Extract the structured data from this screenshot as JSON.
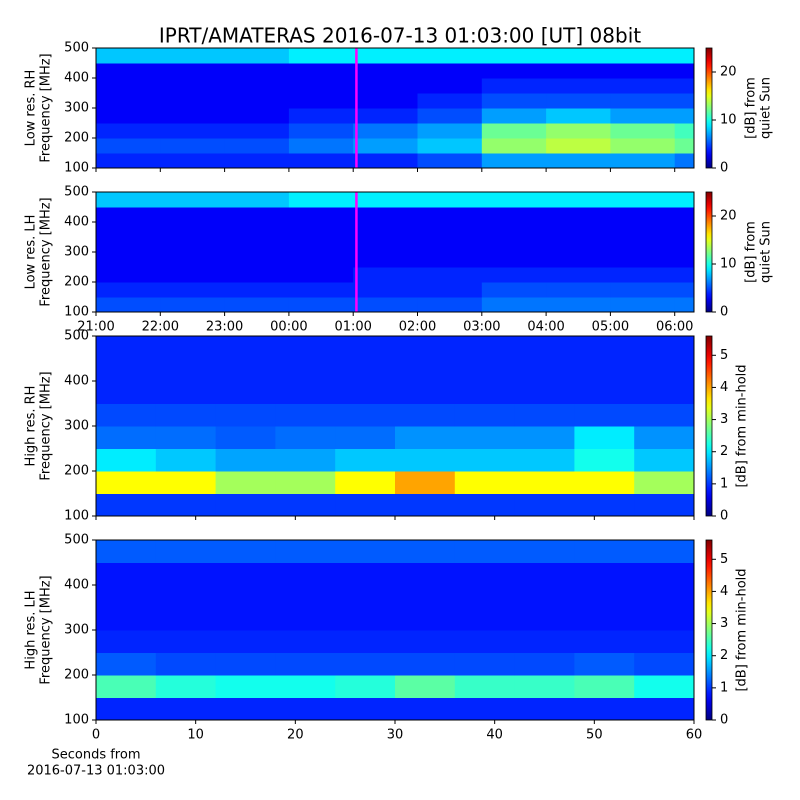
{
  "title": "IPRT/AMATERAS 2016-07-13 01:03:00 [UT]   08bit",
  "chart_data": [
    {
      "type": "heatmap",
      "colormap": "jet",
      "ylabel": [
        "Low res. RH",
        "Frequency [MHz]"
      ],
      "ylim": [
        100,
        500
      ],
      "yticks": [
        100,
        200,
        300,
        400,
        500
      ],
      "xlim": [
        0,
        9.3
      ],
      "xticks": [
        0,
        1,
        2,
        3,
        4,
        5,
        6,
        7,
        8,
        9
      ],
      "show_xticklabels": false,
      "marker_x": 4.05,
      "marker_color": "#ff00ff",
      "clim": [
        0,
        25
      ],
      "cticks": [
        0,
        10,
        20
      ],
      "clabel": [
        "[dB] from",
        "quiet Sun"
      ],
      "xbins": [
        0,
        1,
        2,
        3,
        4,
        5,
        6,
        7,
        8,
        9,
        9.3
      ],
      "ybins": [
        100,
        150,
        200,
        250,
        300,
        350,
        400,
        450,
        500
      ],
      "z": [
        [
          4,
          4,
          4,
          4,
          4,
          5,
          7,
          7,
          7,
          6
        ],
        [
          5,
          5,
          5,
          6,
          7,
          8,
          13,
          14,
          13,
          12
        ],
        [
          4,
          4,
          4,
          5,
          6,
          7,
          12,
          13,
          12,
          11
        ],
        [
          3,
          3,
          3,
          4,
          4,
          5,
          7,
          8,
          7,
          7
        ],
        [
          3,
          3,
          3,
          3,
          3,
          4,
          5,
          5,
          5,
          5
        ],
        [
          3,
          3,
          3,
          3,
          3,
          3,
          4,
          4,
          4,
          4
        ],
        [
          3,
          3,
          3,
          3,
          3,
          3,
          3,
          3,
          3,
          3
        ],
        [
          8,
          8,
          8,
          9,
          9,
          9,
          9,
          9,
          9,
          9
        ]
      ]
    },
    {
      "type": "heatmap",
      "colormap": "jet",
      "ylabel": [
        "Low res. LH",
        "Frequency [MHz]"
      ],
      "ylim": [
        100,
        500
      ],
      "yticks": [
        100,
        200,
        300,
        400,
        500
      ],
      "xlim": [
        0,
        9.3
      ],
      "xticks": [
        {
          "value": 0,
          "label": "21:00"
        },
        {
          "value": 1,
          "label": "22:00"
        },
        {
          "value": 2,
          "label": "23:00"
        },
        {
          "value": 3,
          "label": "00:00"
        },
        {
          "value": 4,
          "label": "01:00"
        },
        {
          "value": 5,
          "label": "02:00"
        },
        {
          "value": 6,
          "label": "03:00"
        },
        {
          "value": 7,
          "label": "04:00"
        },
        {
          "value": 8,
          "label": "05:00"
        },
        {
          "value": 9,
          "label": "06:00"
        }
      ],
      "show_xticklabels": true,
      "marker_x": 4.05,
      "marker_color": "#ff00ff",
      "clim": [
        0,
        25
      ],
      "cticks": [
        0,
        10,
        20
      ],
      "clabel": [
        "[dB] from",
        "quiet Sun"
      ],
      "xbins": [
        0,
        1,
        2,
        3,
        4,
        5,
        6,
        7,
        8,
        9,
        9.3
      ],
      "ybins": [
        100,
        150,
        200,
        250,
        300,
        350,
        400,
        450,
        500
      ],
      "z": [
        [
          5,
          5,
          5,
          5,
          5,
          5,
          6,
          6,
          6,
          6
        ],
        [
          4,
          4,
          4,
          4,
          4,
          4,
          5,
          5,
          5,
          5
        ],
        [
          3,
          3,
          3,
          3,
          4,
          4,
          4,
          4,
          4,
          4
        ],
        [
          3,
          3,
          3,
          3,
          3,
          3,
          3,
          3,
          3,
          3
        ],
        [
          3,
          3,
          3,
          3,
          3,
          3,
          3,
          3,
          3,
          3
        ],
        [
          3,
          3,
          3,
          3,
          3,
          3,
          3,
          3,
          3,
          3
        ],
        [
          3,
          3,
          3,
          3,
          3,
          3,
          3,
          3,
          3,
          3
        ],
        [
          8,
          8,
          8,
          9,
          9,
          9,
          9,
          9,
          9,
          9
        ]
      ]
    },
    {
      "type": "heatmap",
      "colormap": "jet",
      "ylabel": [
        "High res. RH",
        "Frequency [MHz]"
      ],
      "ylim": [
        100,
        500
      ],
      "yticks": [
        100,
        200,
        300,
        400,
        500
      ],
      "xlim": [
        0,
        60
      ],
      "xticks": [
        0,
        10,
        20,
        30,
        40,
        50,
        60
      ],
      "show_xticklabels": false,
      "clim": [
        0,
        5.6
      ],
      "cticks": [
        0,
        1,
        2,
        3,
        4,
        5
      ],
      "clabel": [
        "[dB] from min-hold"
      ],
      "xbins": [
        0,
        6,
        12,
        18,
        24,
        30,
        36,
        42,
        48,
        54,
        60
      ],
      "ybins": [
        100,
        150,
        200,
        250,
        300,
        350,
        400,
        450,
        500
      ],
      "z": [
        [
          1,
          1,
          1,
          1,
          1,
          1,
          1,
          1,
          1,
          1
        ],
        [
          3.5,
          3.5,
          3,
          3,
          3.5,
          4,
          3.5,
          3.5,
          3.5,
          3
        ],
        [
          2,
          1.8,
          1.6,
          1.6,
          1.8,
          1.8,
          1.8,
          1.8,
          2.2,
          1.8
        ],
        [
          1.3,
          1.3,
          1.2,
          1.3,
          1.3,
          1.5,
          1.5,
          1.5,
          2,
          1.5
        ],
        [
          1.1,
          1.1,
          1.1,
          1.1,
          1.1,
          1.1,
          1.1,
          1.1,
          1.1,
          1.1
        ],
        [
          0.9,
          0.9,
          0.9,
          0.9,
          0.9,
          0.9,
          0.9,
          0.9,
          0.9,
          0.9
        ],
        [
          0.9,
          0.9,
          0.9,
          0.9,
          0.9,
          0.9,
          0.9,
          0.9,
          0.9,
          0.9
        ],
        [
          0.9,
          0.9,
          0.9,
          0.9,
          0.9,
          0.9,
          0.9,
          0.9,
          0.9,
          0.9
        ]
      ]
    },
    {
      "type": "heatmap",
      "colormap": "jet",
      "ylabel": [
        "High res. LH",
        "Frequency [MHz]"
      ],
      "ylim": [
        100,
        500
      ],
      "yticks": [
        100,
        200,
        300,
        400,
        500
      ],
      "xlim": [
        0,
        60
      ],
      "xticks": [
        0,
        10,
        20,
        30,
        40,
        50,
        60
      ],
      "show_xticklabels": true,
      "xlabel": [
        "Seconds from",
        "2016-07-13 01:03:00"
      ],
      "clim": [
        0,
        5.6
      ],
      "cticks": [
        0,
        1,
        2,
        3,
        4,
        5
      ],
      "clabel": [
        "[dB] from min-hold"
      ],
      "xbins": [
        0,
        6,
        12,
        18,
        24,
        30,
        36,
        42,
        48,
        54,
        60
      ],
      "ybins": [
        100,
        150,
        200,
        250,
        300,
        350,
        400,
        450,
        500
      ],
      "z": [
        [
          0.9,
          0.9,
          0.9,
          0.9,
          0.9,
          0.9,
          0.9,
          0.9,
          0.9,
          0.9
        ],
        [
          2.5,
          2.3,
          2.2,
          2.2,
          2.3,
          2.6,
          2.4,
          2.4,
          2.5,
          2.2
        ],
        [
          1.2,
          1.1,
          1.1,
          1.1,
          1.1,
          1.1,
          1.1,
          1.1,
          1.2,
          1.1
        ],
        [
          0.9,
          0.9,
          0.9,
          0.9,
          0.9,
          0.9,
          0.9,
          0.9,
          0.9,
          0.9
        ],
        [
          0.8,
          0.8,
          0.8,
          0.8,
          0.8,
          0.8,
          0.8,
          0.8,
          0.8,
          0.8
        ],
        [
          0.8,
          0.8,
          0.8,
          0.8,
          0.8,
          0.8,
          0.8,
          0.8,
          0.8,
          0.8
        ],
        [
          0.8,
          0.8,
          0.8,
          0.8,
          0.8,
          0.8,
          0.8,
          0.8,
          0.8,
          0.8
        ],
        [
          1.2,
          1.2,
          1.2,
          1.2,
          1.2,
          1.2,
          1.2,
          1.2,
          1.2,
          1.2
        ]
      ]
    }
  ]
}
